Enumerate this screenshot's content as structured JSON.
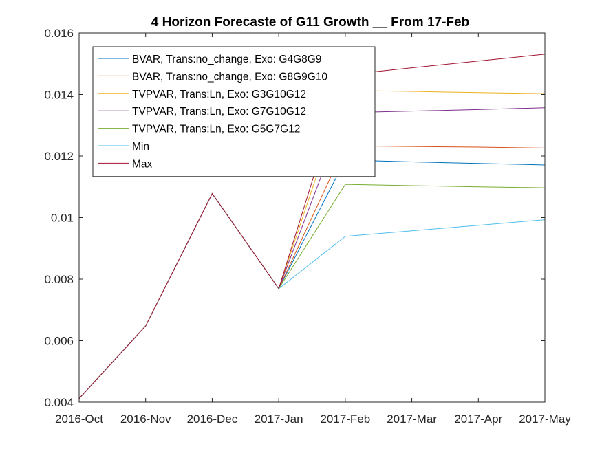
{
  "chart_data": {
    "type": "line",
    "title": "4 Horizon Forecaste of G11 Growth __ From 17-Feb",
    "xlabel": "",
    "ylabel": "",
    "categories": [
      "2016-Oct",
      "2016-Nov",
      "2016-Dec",
      "2017-Jan",
      "2017-Feb",
      "2017-Mar",
      "2017-Apr",
      "2017-May"
    ],
    "ylim": [
      0.004,
      0.016
    ],
    "yticks": [
      "0.004",
      "0.006",
      "0.008",
      "0.01",
      "0.012",
      "0.014",
      "0.016"
    ],
    "grid": false,
    "legend_position": "top-left",
    "series": [
      {
        "name": "BVAR, Trans:no_change, Exo: G4G8G9",
        "color": "#0072BD",
        "values": [
          0.00412,
          0.00648,
          0.01078,
          0.00769,
          0.01187,
          0.01181,
          0.01176,
          0.01171
        ]
      },
      {
        "name": "BVAR, Trans:no_change, Exo: G8G9G10",
        "color": "#D95319",
        "values": [
          0.00412,
          0.00648,
          0.01078,
          0.00769,
          0.01233,
          0.01231,
          0.01229,
          0.01226
        ]
      },
      {
        "name": "TVPVAR, Trans:Ln, Exo: G3G10G12",
        "color": "#EDB120",
        "values": [
          0.00412,
          0.00648,
          0.01078,
          0.00769,
          0.01413,
          0.0141,
          0.01406,
          0.01403
        ]
      },
      {
        "name": "TVPVAR, Trans:Ln, Exo: G7G10G12",
        "color": "#7E2F8E",
        "values": [
          0.00412,
          0.00648,
          0.01078,
          0.00769,
          0.01341,
          0.01346,
          0.01351,
          0.01357
        ]
      },
      {
        "name": "TVPVAR, Trans:Ln, Exo: G5G7G12",
        "color": "#77AC30",
        "values": [
          0.00412,
          0.00648,
          0.01078,
          0.00769,
          0.01108,
          0.01104,
          0.011,
          0.01097
        ]
      },
      {
        "name": "Min",
        "color": "#4DBEEE",
        "values": [
          0.00412,
          0.00648,
          0.01078,
          0.00769,
          0.00939,
          0.00957,
          0.00975,
          0.00993
        ]
      },
      {
        "name": "Max",
        "color": "#A2142F",
        "values": [
          0.00412,
          0.00648,
          0.01078,
          0.00769,
          0.01464,
          0.01487,
          0.01509,
          0.01531
        ]
      }
    ]
  }
}
